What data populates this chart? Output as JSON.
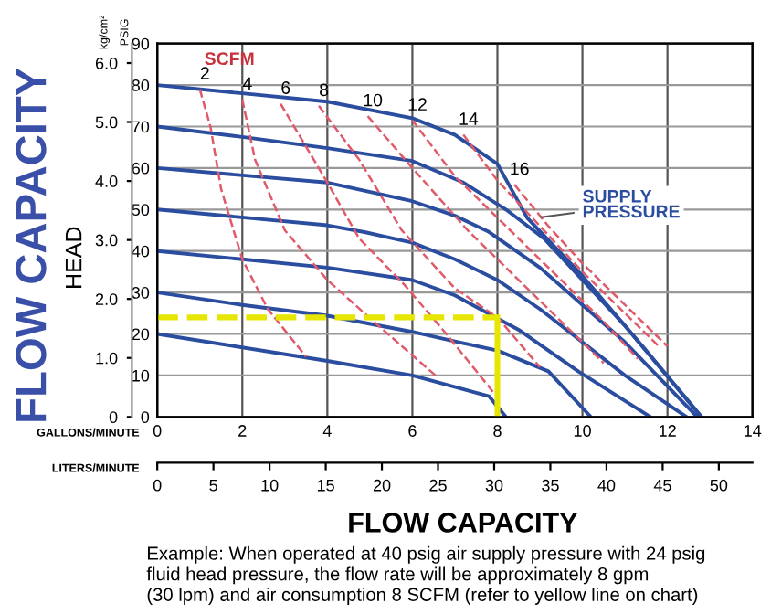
{
  "chart_data": {
    "type": "line",
    "title": "FLOW CAPACITY",
    "xlabel": "GALLONS/MINUTE",
    "x2label": "LITERS/MINUTE",
    "ylabel": "PSIG",
    "y2label": "kg/cm²",
    "annotations": [
      "HEAD",
      "FLOW CAPACITY",
      "SCFM",
      {
        "text": "SUPPLY\nPRESSURE",
        "x": 8.9,
        "y": 48
      },
      "Example: When operated at 40 psig air supply pressure with 24 psig\nfluid head pressure, the flow rate will be approximately 8 gpm\n(30 lpm) and air consumption 8 SCFM (refer to yellow line on chart)"
    ],
    "xlim": [
      0,
      14
    ],
    "xticks": [
      0,
      2,
      4,
      6,
      8,
      10,
      12,
      14
    ],
    "x2lim": [
      0,
      53
    ],
    "x2ticks": [
      0,
      5,
      10,
      15,
      20,
      25,
      30,
      35,
      40,
      45,
      50
    ],
    "ylim": [
      0,
      90
    ],
    "yticks": [
      0,
      10,
      20,
      30,
      40,
      50,
      60,
      70,
      80,
      90
    ],
    "y2lim": [
      0,
      6.33
    ],
    "y2ticks": [
      0,
      {
        "value": 1,
        "label": "1.0"
      },
      {
        "value": 2,
        "label": "2.0"
      },
      {
        "value": 3,
        "label": "3.0"
      },
      {
        "value": 4,
        "label": "4.0"
      },
      {
        "value": 5,
        "label": "5.0"
      },
      {
        "value": 6,
        "label": "6.0"
      }
    ],
    "grid": true,
    "marker": "none",
    "series": [
      {
        "color": "#2b4da0",
        "line_style": "solid",
        "x": [
          0,
          2,
          4,
          6,
          7.2,
          8.2,
          9.1,
          10,
          11,
          12.8
        ],
        "values": [
          70,
          67.5,
          64.8,
          61.7,
          56.5,
          50,
          43,
          33,
          22,
          0
        ]
      },
      {
        "color": "#2b4da0",
        "line_style": "solid",
        "x": [
          0,
          2,
          4,
          6,
          7,
          8,
          8.7,
          10,
          11.5,
          12.8
        ],
        "values": [
          80,
          78,
          76,
          72,
          68,
          61,
          48,
          34,
          16,
          0
        ]
      },
      {
        "color": "#2b4da0",
        "line_style": "solid",
        "x": [
          0,
          4,
          6,
          7,
          7.8,
          9,
          10,
          11,
          12.7
        ],
        "values": [
          60,
          56.5,
          52,
          48.5,
          44.6,
          36,
          27,
          18,
          0
        ]
      },
      {
        "color": "#2b4da0",
        "line_style": "solid",
        "x": [
          0,
          4,
          4.9,
          6,
          7,
          8,
          9,
          10,
          11,
          12.45
        ],
        "values": [
          50,
          46.2,
          44.5,
          42,
          38,
          33,
          26,
          18,
          10,
          0
        ]
      },
      {
        "color": "#2b4da0",
        "line_style": "solid",
        "x": [
          0,
          2,
          4,
          6,
          7,
          8.5,
          9.9,
          11.6
        ],
        "values": [
          40,
          38,
          36,
          33,
          29.3,
          21,
          11,
          0
        ]
      },
      {
        "color": "#2b4da0",
        "line_style": "solid",
        "x": [
          0,
          2,
          4,
          6,
          7,
          8,
          9.2,
          10.2
        ],
        "values": [
          30,
          27,
          24.4,
          20.5,
          18.2,
          16,
          11,
          0
        ]
      },
      {
        "color": "#2b4da0",
        "line_style": "solid",
        "x": [
          0,
          4,
          6,
          6.75,
          7.8,
          8.2
        ],
        "values": [
          20,
          13.5,
          10,
          7.9,
          5,
          0
        ]
      },
      {
        "name": "2",
        "color": "#e05a6a",
        "line_style": "dashed",
        "x": [
          1.0,
          1.25,
          1.5,
          2.0,
          2.6,
          3.5
        ],
        "values": [
          79,
          70,
          55,
          38,
          26,
          14.5
        ]
      },
      {
        "name": "4",
        "color": "#e05a6a",
        "line_style": "dashed",
        "x": [
          2.0,
          2.3,
          3.0,
          4.0,
          5.2,
          6.6
        ],
        "values": [
          76.5,
          62,
          45,
          33,
          22,
          9.5
        ]
      },
      {
        "name": "6",
        "color": "#e05a6a",
        "line_style": "dashed",
        "x": [
          2.9,
          4.0,
          4.75,
          5.8,
          6.8,
          7.9
        ],
        "values": [
          75.5,
          56.5,
          43,
          32,
          20,
          6
        ]
      },
      {
        "name": "8",
        "color": "#e05a6a",
        "line_style": "dashed",
        "x": [
          3.8,
          4.75,
          5.75,
          7.0,
          8.0,
          9.0
        ],
        "values": [
          75,
          62,
          45,
          31,
          24,
          12
        ]
      },
      {
        "name": "10",
        "color": "#e05a6a",
        "line_style": "dashed",
        "x": [
          4.95,
          6.0,
          7.3,
          8.5,
          9.6,
          10.5
        ],
        "values": [
          72.5,
          60,
          45,
          33,
          22,
          13
        ]
      },
      {
        "name": "12",
        "color": "#e05a6a",
        "line_style": "dashed",
        "x": [
          6.0,
          7.0,
          8.3,
          9.5,
          10.5,
          11.3
        ],
        "values": [
          71.5,
          58,
          45,
          33,
          23,
          14
        ]
      },
      {
        "name": "14",
        "color": "#e05a6a",
        "line_style": "dashed",
        "x": [
          7.2,
          8.0,
          9.0,
          10.0,
          11.0,
          11.8
        ],
        "values": [
          68,
          57,
          46,
          35,
          25,
          17
        ]
      },
      {
        "name": "16",
        "color": "#e05a6a",
        "line_style": "dashed",
        "x": [
          8.4,
          9.2,
          10.0,
          11.0,
          12.0
        ],
        "values": [
          56,
          46,
          37,
          27,
          17
        ]
      },
      {
        "color": "#e6e600",
        "line_style": "dashed",
        "x": [
          0,
          8
        ],
        "values": [
          24,
          24
        ]
      },
      {
        "color": "#e6e600",
        "line_style": "solid",
        "x": [
          8,
          8
        ],
        "values": [
          24,
          0
        ]
      }
    ]
  }
}
